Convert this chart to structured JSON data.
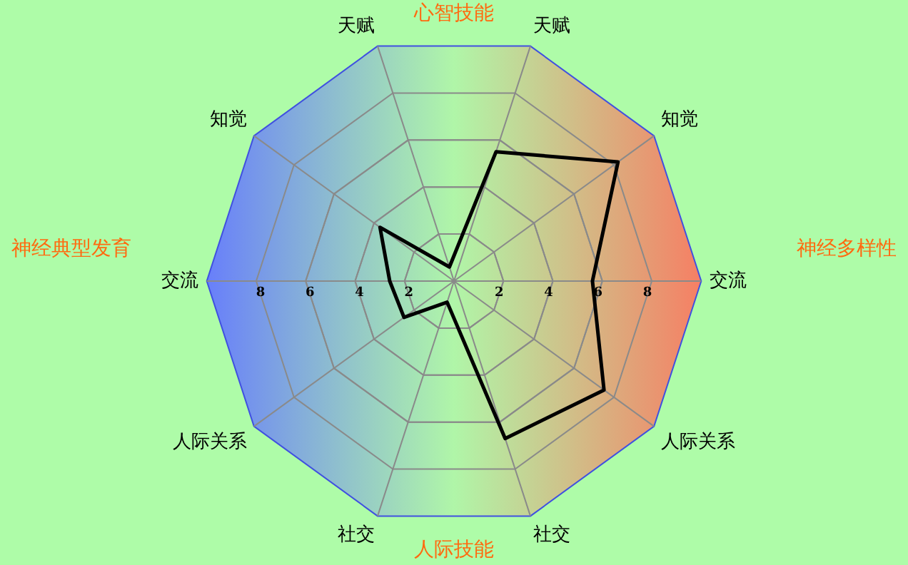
{
  "chart_data": {
    "type": "radar",
    "categories": [
      "天赋",
      "知觉",
      "交流",
      "人际关系",
      "社交",
      "社交",
      "人际关系",
      "交流",
      "知觉",
      "天赋"
    ],
    "series": [
      {
        "color": "#000000",
        "values": [
          5.5,
          8.2,
          5.6,
          7.5,
          6.7,
          0.9,
          2.5,
          2.6,
          3.7,
          0.6
        ]
      }
    ],
    "ylim": [
      0,
      10
    ],
    "yticks": [
      8,
      6,
      4,
      2,
      2,
      4,
      6,
      8
    ],
    "grid": true,
    "legend": false,
    "marker": "none",
    "line_style": "solid",
    "annotations": [
      "心智技能",
      "人际技能",
      "神经典型发育",
      "神经多样性"
    ]
  }
}
